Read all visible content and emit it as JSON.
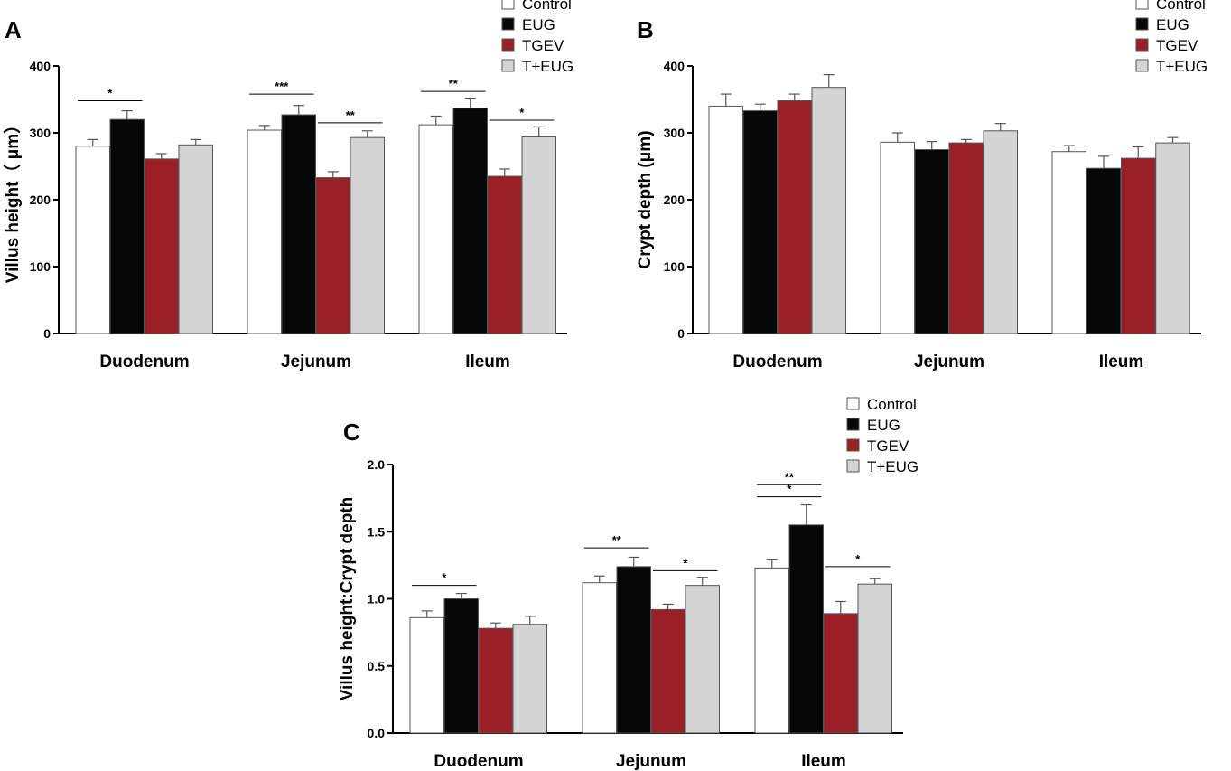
{
  "chart_data": [
    {
      "id": "A",
      "type": "bar",
      "panel_label": "A",
      "ylabel": "Villus height（ μm）",
      "ylim": [
        0,
        400
      ],
      "yticks": [
        "0",
        "100",
        "200",
        "300",
        "400"
      ],
      "categories": [
        "Duodenum",
        "Jejunum",
        "Ileum"
      ],
      "legend": [
        "Control",
        "EUG",
        "TGEV",
        "T+EUG"
      ],
      "series": [
        {
          "name": "Control",
          "values": [
            280,
            304,
            312
          ],
          "errors": [
            10,
            7,
            13
          ]
        },
        {
          "name": "EUG",
          "values": [
            320,
            327,
            337
          ],
          "errors": [
            13,
            14,
            15
          ]
        },
        {
          "name": "TGEV",
          "values": [
            261,
            233,
            235
          ],
          "errors": [
            8,
            9,
            11
          ]
        },
        {
          "name": "T+EUG",
          "values": [
            282,
            293,
            294
          ],
          "errors": [
            8,
            10,
            15
          ]
        }
      ],
      "significance": [
        {
          "cat": 0,
          "from": 0,
          "to": 1,
          "label": "*",
          "level": 348
        },
        {
          "cat": 1,
          "from": 0,
          "to": 1,
          "label": "***",
          "level": 358
        },
        {
          "cat": 1,
          "from": 2,
          "to": 3,
          "label": "**",
          "level": 315
        },
        {
          "cat": 2,
          "from": 0,
          "to": 1,
          "label": "**",
          "level": 362
        },
        {
          "cat": 2,
          "from": 2,
          "to": 3,
          "label": "*",
          "level": 319
        }
      ]
    },
    {
      "id": "B",
      "type": "bar",
      "panel_label": "B",
      "ylabel": "Crypt depth (μm)",
      "ylim": [
        0,
        400
      ],
      "yticks": [
        "0",
        "100",
        "200",
        "300",
        "400"
      ],
      "categories": [
        "Duodenum",
        "Jejunum",
        "Ileum"
      ],
      "legend": [
        "Control",
        "EUG",
        "TGEV",
        "T+EUG"
      ],
      "series": [
        {
          "name": "Control",
          "values": [
            340,
            286,
            272
          ],
          "errors": [
            18,
            14,
            9
          ]
        },
        {
          "name": "EUG",
          "values": [
            333,
            275,
            247
          ],
          "errors": [
            10,
            12,
            18
          ]
        },
        {
          "name": "TGEV",
          "values": [
            348,
            285,
            262
          ],
          "errors": [
            10,
            5,
            17
          ]
        },
        {
          "name": "T+EUG",
          "values": [
            368,
            303,
            285
          ],
          "errors": [
            19,
            11,
            8
          ]
        }
      ],
      "significance": []
    },
    {
      "id": "C",
      "type": "bar",
      "panel_label": "C",
      "ylabel": "Villus height:Crypt depth",
      "ylim": [
        0,
        2.0
      ],
      "yticks": [
        "0.0",
        "0.5",
        "1.0",
        "1.5",
        "2.0"
      ],
      "categories": [
        "Duodenum",
        "Jejunum",
        "Ileum"
      ],
      "legend": [
        "Control",
        "EUG",
        "TGEV",
        "T+EUG"
      ],
      "series": [
        {
          "name": "Control",
          "values": [
            0.86,
            1.12,
            1.23
          ],
          "errors": [
            0.05,
            0.05,
            0.06
          ]
        },
        {
          "name": "EUG",
          "values": [
            1.0,
            1.24,
            1.55
          ],
          "errors": [
            0.04,
            0.07,
            0.15
          ]
        },
        {
          "name": "TGEV",
          "values": [
            0.78,
            0.92,
            0.89
          ],
          "errors": [
            0.04,
            0.04,
            0.09
          ]
        },
        {
          "name": "T+EUG",
          "values": [
            0.81,
            1.1,
            1.11
          ],
          "errors": [
            0.06,
            0.06,
            0.04
          ]
        }
      ],
      "significance": [
        {
          "cat": 0,
          "from": 0,
          "to": 1,
          "label": "*",
          "level": 1.1
        },
        {
          "cat": 1,
          "from": 0,
          "to": 1,
          "label": "**",
          "level": 1.38
        },
        {
          "cat": 1,
          "from": 2,
          "to": 3,
          "label": "*",
          "level": 1.21
        },
        {
          "cat": 2,
          "from": 0,
          "to": 1,
          "label": "*",
          "level": 1.76
        },
        {
          "cat": 2,
          "from": 0,
          "to": 1,
          "label": "**",
          "level": 1.85
        },
        {
          "cat": 2,
          "from": 2,
          "to": 3,
          "label": "*",
          "level": 1.24
        }
      ]
    }
  ],
  "colors": {
    "Control": "#ffffff",
    "EUG": "#050709",
    "TGEV": "#9b1f27",
    "T+EUG": "#d4d4d4",
    "outline": "#555555"
  }
}
